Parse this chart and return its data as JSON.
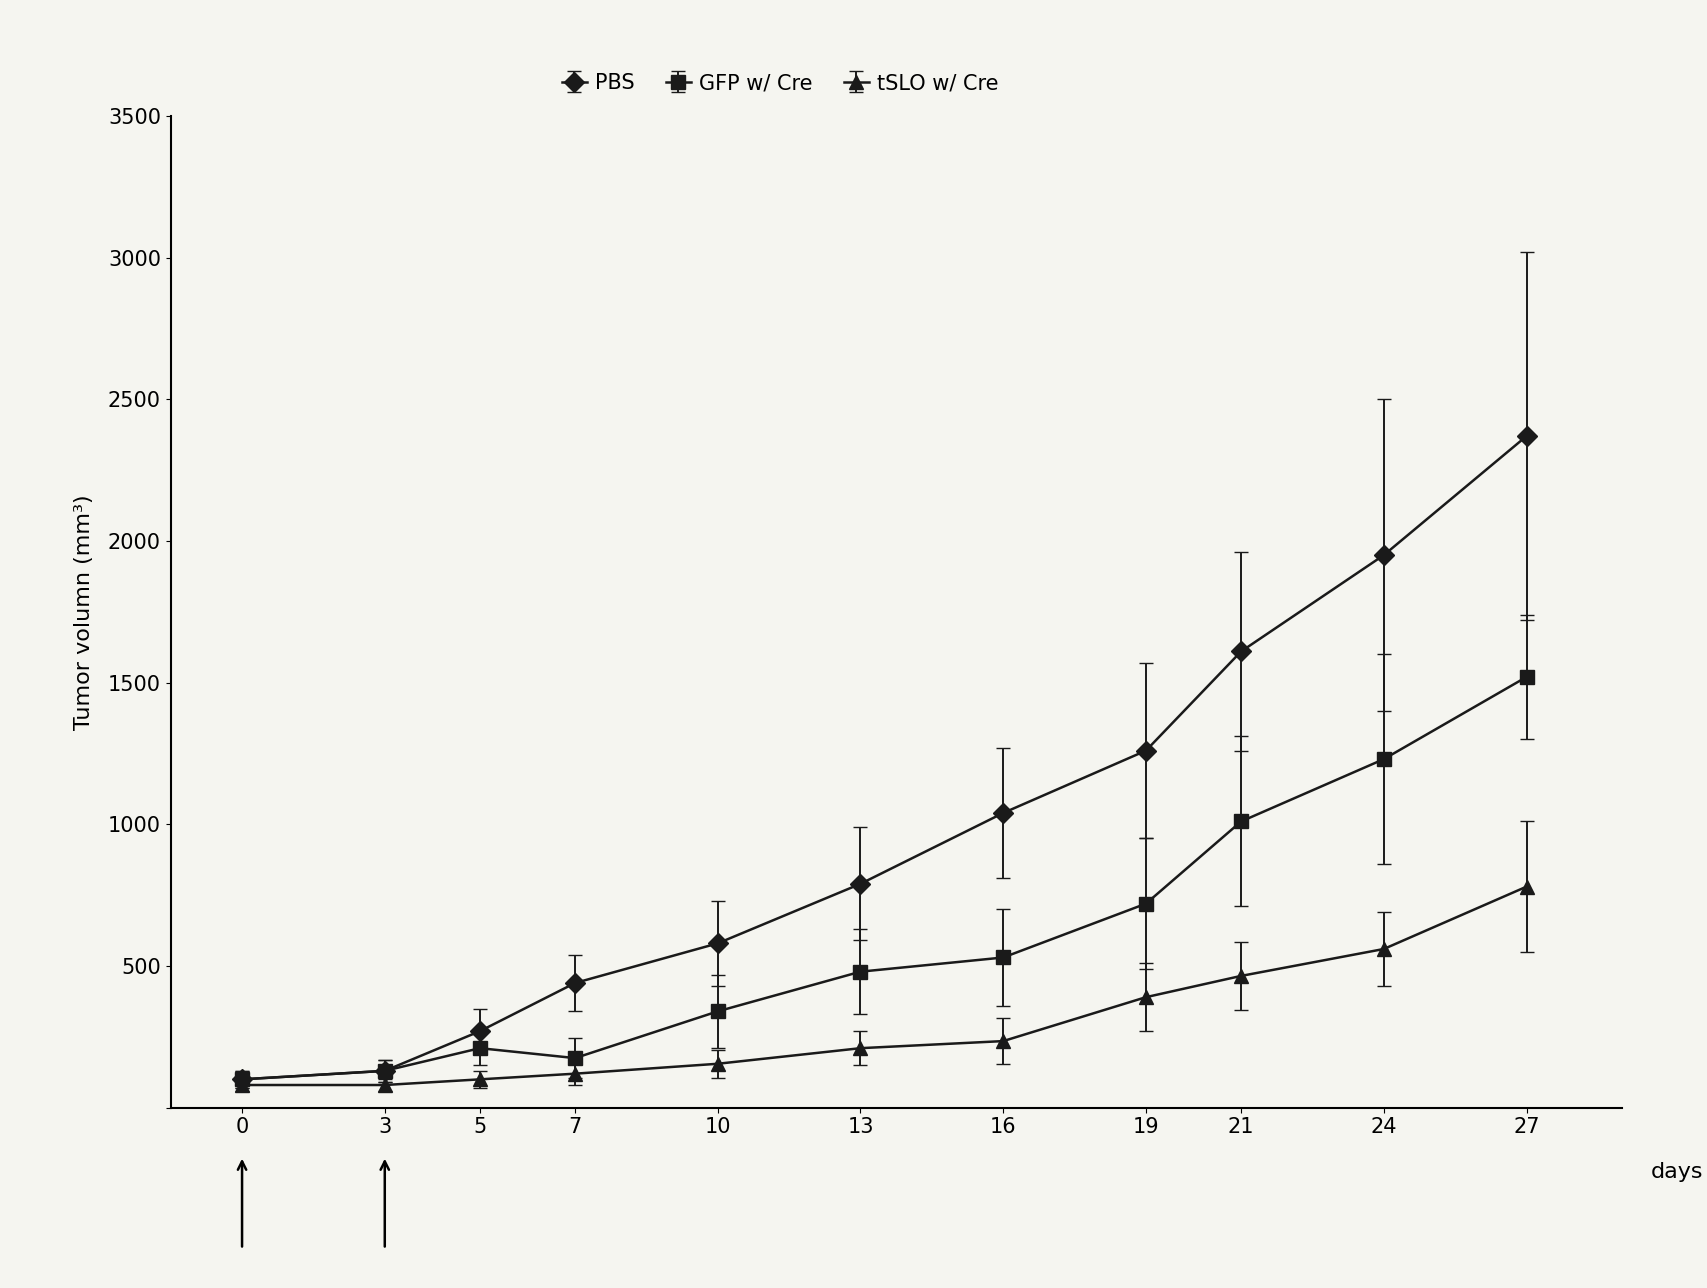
{
  "x": [
    0,
    3,
    5,
    7,
    10,
    13,
    16,
    19,
    21,
    24,
    27
  ],
  "pbs_y": [
    100,
    130,
    270,
    440,
    580,
    790,
    1040,
    1260,
    1610,
    1950,
    2370
  ],
  "pbs_err": [
    30,
    40,
    80,
    100,
    150,
    200,
    230,
    310,
    350,
    550,
    650
  ],
  "gfp_y": [
    100,
    130,
    210,
    175,
    340,
    480,
    530,
    720,
    1010,
    1230,
    1520
  ],
  "gfp_err": [
    30,
    40,
    60,
    70,
    130,
    150,
    170,
    230,
    300,
    370,
    220
  ],
  "tslo_y": [
    80,
    80,
    100,
    120,
    155,
    210,
    235,
    390,
    465,
    560,
    780
  ],
  "tslo_err": [
    20,
    20,
    30,
    40,
    50,
    60,
    80,
    120,
    120,
    130,
    230
  ],
  "ylim": [
    0,
    3500
  ],
  "yticks": [
    0,
    500,
    1000,
    1500,
    2000,
    2500,
    3000,
    3500
  ],
  "xticks": [
    0,
    3,
    5,
    7,
    10,
    13,
    16,
    19,
    21,
    24,
    27
  ],
  "xlabel": "days",
  "ylabel": "Tumor volumn (mm³)",
  "color": "#1a1a1a",
  "background_color": "#f5f5f0",
  "legend_labels": [
    "PBS",
    "GFP w/ Cre",
    "tSLO w/ Cre"
  ],
  "linewidth": 1.8,
  "markersize": 10,
  "capsize": 5,
  "elinewidth": 1.4,
  "axis_fontsize": 16,
  "tick_fontsize": 15,
  "legend_fontsize": 15
}
